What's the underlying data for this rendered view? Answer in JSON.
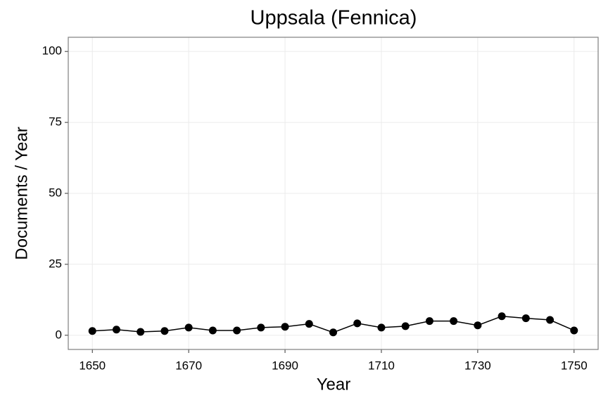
{
  "chart_data": {
    "type": "line",
    "title": "Uppsala (Fennica)",
    "x_label": "Year",
    "y_label": "Documents / Year",
    "x": [
      1650,
      1655,
      1660,
      1665,
      1670,
      1675,
      1680,
      1685,
      1690,
      1695,
      1700,
      1705,
      1710,
      1715,
      1720,
      1725,
      1730,
      1735,
      1740,
      1745,
      1750
    ],
    "series": [
      {
        "color": "#000000",
        "values": [
          1.5,
          2,
          1.2,
          1.5,
          2.7,
          1.7,
          1.7,
          2.7,
          3,
          4,
          1,
          4.2,
          2.7,
          3.2,
          5,
          5,
          3.5,
          6.7,
          6,
          5.4,
          1.7
        ]
      }
    ],
    "xlim": [
      1645,
      1755
    ],
    "ylim": [
      -5,
      105
    ],
    "xticks": [
      1650,
      1670,
      1690,
      1710,
      1730,
      1750
    ],
    "yticks": [
      0,
      25,
      50,
      75,
      100
    ],
    "grid": true
  }
}
